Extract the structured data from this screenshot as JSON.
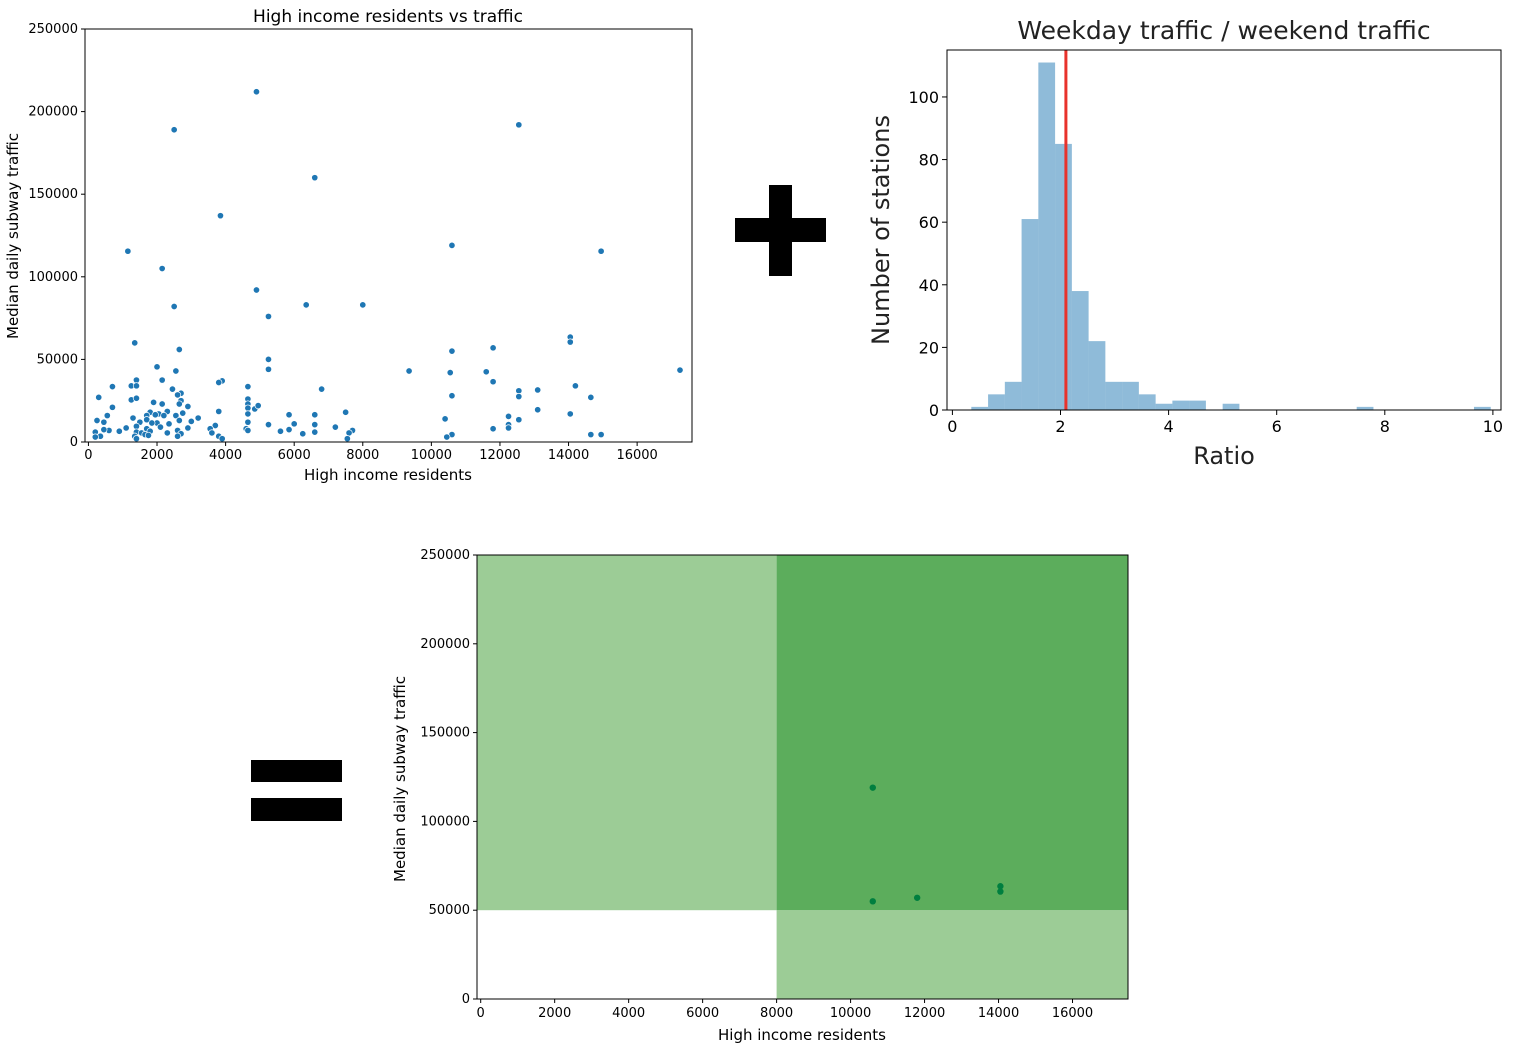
{
  "operators": {
    "plus": "plus-sign",
    "equals": "equals-sign"
  },
  "chart_data": [
    {
      "type": "scatter",
      "title": "High income residents vs traffic",
      "xlabel": "High income residents",
      "ylabel": "Median daily subway traffic",
      "xlim": [
        -100,
        17600
      ],
      "ylim": [
        0,
        250000
      ],
      "xticks": [
        0,
        2000,
        4000,
        6000,
        8000,
        10000,
        12000,
        14000,
        16000
      ],
      "yticks": [
        0,
        50000,
        100000,
        150000,
        200000,
        250000
      ],
      "color": "#1f77b4",
      "points": [
        [
          4900,
          212000
        ],
        [
          2500,
          189000
        ],
        [
          12550,
          192000
        ],
        [
          6600,
          160000
        ],
        [
          3850,
          137000
        ],
        [
          1150,
          115500
        ],
        [
          10600,
          119000
        ],
        [
          14950,
          115500
        ],
        [
          2150,
          105000
        ],
        [
          4900,
          92000
        ],
        [
          2500,
          82000
        ],
        [
          6350,
          83000
        ],
        [
          8000,
          83000
        ],
        [
          5250,
          76000
        ],
        [
          1350,
          60000
        ],
        [
          14050,
          63500
        ],
        [
          14050,
          60500
        ],
        [
          10600,
          55000
        ],
        [
          11800,
          57000
        ],
        [
          2650,
          56000
        ],
        [
          5250,
          50000
        ],
        [
          5250,
          44000
        ],
        [
          2000,
          45500
        ],
        [
          9350,
          43000
        ],
        [
          10550,
          42000
        ],
        [
          11600,
          42500
        ],
        [
          17250,
          43500
        ],
        [
          2550,
          43000
        ],
        [
          3900,
          37000
        ],
        [
          3800,
          36000
        ],
        [
          1400,
          37500
        ],
        [
          2150,
          37500
        ],
        [
          11800,
          36500
        ],
        [
          14200,
          34000
        ],
        [
          1250,
          34000
        ],
        [
          1400,
          34000
        ],
        [
          700,
          33500
        ],
        [
          2450,
          32000
        ],
        [
          4650,
          33500
        ],
        [
          6800,
          32000
        ],
        [
          12550,
          31000
        ],
        [
          13100,
          31500
        ],
        [
          2700,
          29500
        ],
        [
          2600,
          28500
        ],
        [
          12550,
          27500
        ],
        [
          10600,
          28000
        ],
        [
          14650,
          27000
        ],
        [
          300,
          27000
        ],
        [
          1250,
          25500
        ],
        [
          1400,
          26500
        ],
        [
          2700,
          25000
        ],
        [
          4650,
          26000
        ],
        [
          2150,
          23000
        ],
        [
          2650,
          23000
        ],
        [
          1900,
          24000
        ],
        [
          2900,
          21500
        ],
        [
          4650,
          23000
        ],
        [
          700,
          21000
        ],
        [
          4850,
          20000
        ],
        [
          4650,
          20500
        ],
        [
          13100,
          19500
        ],
        [
          4950,
          22000
        ],
        [
          3800,
          18500
        ],
        [
          7500,
          18000
        ],
        [
          2300,
          18500
        ],
        [
          1800,
          18000
        ],
        [
          2050,
          17000
        ],
        [
          1950,
          16500
        ],
        [
          2750,
          17500
        ],
        [
          4650,
          17000
        ],
        [
          1700,
          16000
        ],
        [
          5850,
          16500
        ],
        [
          6600,
          16500
        ],
        [
          14050,
          17000
        ],
        [
          550,
          16000
        ],
        [
          2200,
          16000
        ],
        [
          2550,
          16000
        ],
        [
          12250,
          15500
        ],
        [
          1700,
          13500
        ],
        [
          3200,
          14500
        ],
        [
          1300,
          14500
        ],
        [
          2650,
          13000
        ],
        [
          12550,
          13500
        ],
        [
          450,
          12000
        ],
        [
          3000,
          12500
        ],
        [
          2000,
          11500
        ],
        [
          2350,
          11000
        ],
        [
          6000,
          11000
        ],
        [
          4650,
          12000
        ],
        [
          5250,
          10500
        ],
        [
          10400,
          14000
        ],
        [
          250,
          13000
        ],
        [
          1500,
          12000
        ],
        [
          1850,
          11500
        ],
        [
          6600,
          10500
        ],
        [
          3700,
          10000
        ],
        [
          12250,
          10500
        ],
        [
          12250,
          8500
        ],
        [
          7200,
          9000
        ],
        [
          4600,
          8000
        ],
        [
          1100,
          8500
        ],
        [
          2100,
          9000
        ],
        [
          2900,
          8500
        ],
        [
          3550,
          8000
        ],
        [
          1400,
          9500
        ],
        [
          5850,
          7500
        ],
        [
          7700,
          7000
        ],
        [
          4650,
          7000
        ],
        [
          11800,
          8000
        ],
        [
          1700,
          8000
        ],
        [
          2600,
          7000
        ],
        [
          3600,
          5500
        ],
        [
          7600,
          5500
        ],
        [
          5600,
          6500
        ],
        [
          1400,
          6000
        ],
        [
          1550,
          5500
        ],
        [
          1800,
          6500
        ],
        [
          900,
          6500
        ],
        [
          600,
          7000
        ],
        [
          200,
          6000
        ],
        [
          450,
          7500
        ],
        [
          1650,
          4500
        ],
        [
          2700,
          5000
        ],
        [
          2300,
          5500
        ],
        [
          6250,
          5000
        ],
        [
          6600,
          6000
        ],
        [
          14950,
          4500
        ],
        [
          14650,
          4500
        ],
        [
          10600,
          4500
        ],
        [
          10450,
          3000
        ],
        [
          350,
          3500
        ],
        [
          1350,
          3500
        ],
        [
          1750,
          4000
        ],
        [
          3800,
          3500
        ],
        [
          1400,
          2000
        ],
        [
          2600,
          3500
        ],
        [
          3900,
          2000
        ],
        [
          7550,
          2000
        ],
        [
          200,
          3000
        ]
      ]
    },
    {
      "type": "bar",
      "title": "Weekday traffic / weekend traffic",
      "xlabel": "Ratio",
      "ylabel": "Number of stations",
      "xlim": [
        -0.1,
        10.15
      ],
      "ylim": [
        0,
        115
      ],
      "xticks": [
        0,
        2,
        4,
        6,
        8,
        10
      ],
      "yticks": [
        0,
        20,
        40,
        60,
        80,
        100
      ],
      "color": "#1f77b4",
      "bar_alpha": 0.5,
      "bin_start": 0.35,
      "bin_width": 0.31,
      "counts": [
        1,
        5,
        9,
        61,
        111,
        85,
        38,
        22,
        9,
        9,
        5,
        2,
        3,
        3,
        0,
        2,
        0,
        0,
        0,
        0,
        0,
        0,
        0,
        1,
        0,
        0,
        0,
        0,
        0,
        0,
        1
      ],
      "reference_line": {
        "x": 2.1,
        "color": "#e8322c"
      }
    },
    {
      "type": "scatter",
      "xlabel": "High income residents",
      "ylabel": "Median daily subway traffic",
      "xlim": [
        -100,
        17500
      ],
      "ylim": [
        0,
        250000
      ],
      "xticks": [
        0,
        2000,
        4000,
        6000,
        8000,
        10000,
        12000,
        14000,
        16000
      ],
      "yticks": [
        0,
        50000,
        100000,
        150000,
        200000,
        250000
      ],
      "color": "#007f3f",
      "regions": [
        {
          "x": [
            -100,
            8000
          ],
          "y": [
            50000,
            250000
          ],
          "color": "#9ccc96"
        },
        {
          "x": [
            8000,
            17500
          ],
          "y": [
            0,
            50000
          ],
          "color": "#9ccc96"
        },
        {
          "x": [
            8000,
            17500
          ],
          "y": [
            50000,
            250000
          ],
          "color": "#5cad5c"
        }
      ],
      "points": [
        [
          10600,
          119000
        ],
        [
          10600,
          55000
        ],
        [
          11800,
          57000
        ],
        [
          14050,
          63500
        ],
        [
          14050,
          60500
        ]
      ]
    }
  ]
}
